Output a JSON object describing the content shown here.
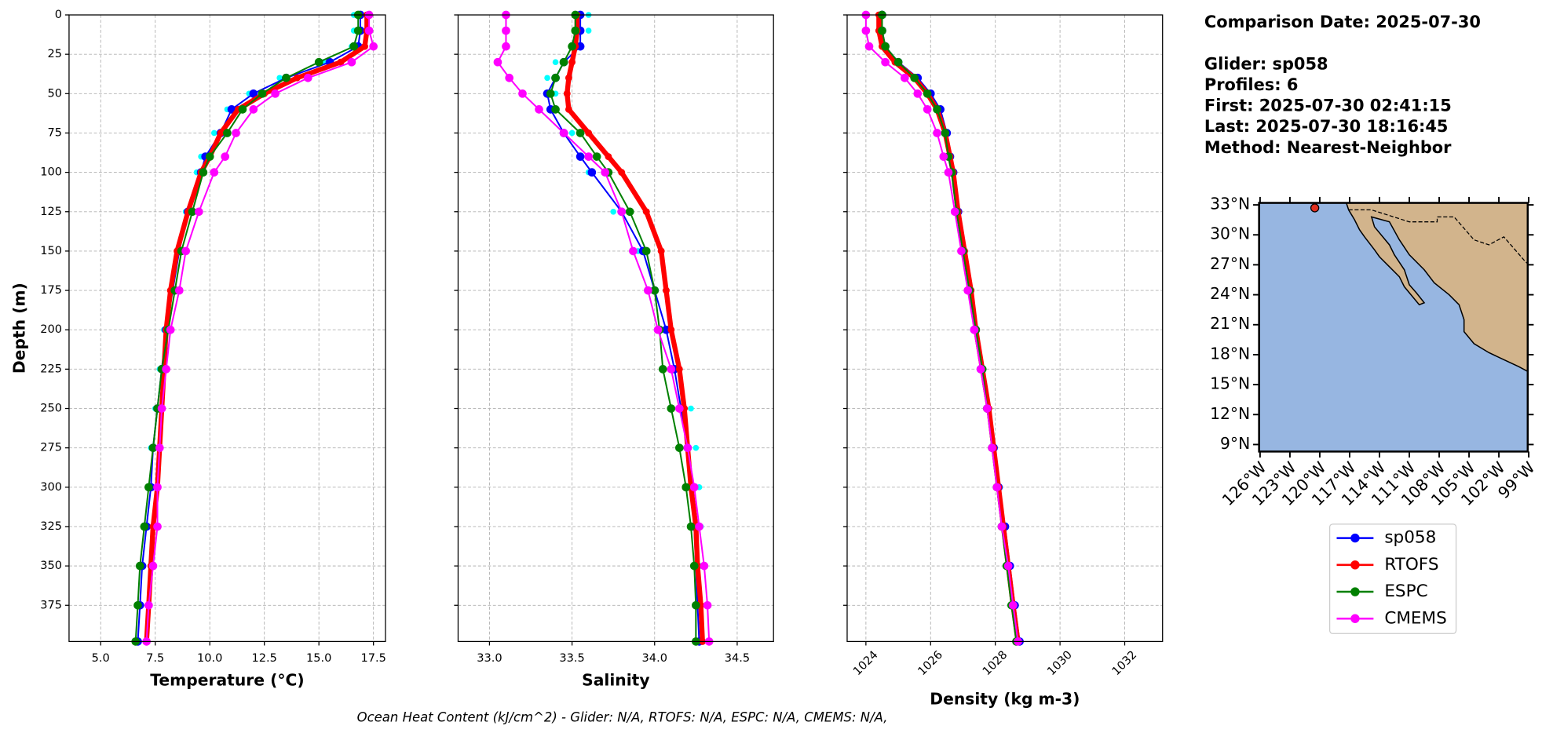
{
  "chart_data": [
    {
      "type": "line",
      "xlabel": "Temperature (°C)",
      "ylabel": "Depth (m)",
      "xlim": [
        3.55,
        18.05
      ],
      "xticks": [
        {
          "value": 5,
          "label": "5.0"
        },
        7.5,
        {
          "value": 10,
          "label": "10.0"
        },
        12.5,
        {
          "value": 15,
          "label": "15.0"
        },
        17.5
      ],
      "ylim": [
        398,
        0
      ],
      "yticks": [
        0,
        25,
        50,
        75,
        100,
        125,
        150,
        175,
        200,
        225,
        250,
        275,
        300,
        325,
        350,
        375
      ],
      "grid": true,
      "y": [
        0,
        10,
        20,
        30,
        40,
        50,
        60,
        75,
        90,
        100,
        125,
        150,
        175,
        200,
        225,
        250,
        275,
        300,
        325,
        350,
        375,
        398
      ],
      "series": [
        {
          "color": "#00ffff",
          "values": [
            16.6,
            16.6,
            16.5,
            15.2,
            13.2,
            11.8,
            10.8,
            10.2,
            9.6,
            9.4,
            8.9,
            8.5,
            8.2,
            7.9,
            7.7,
            7.5,
            7.3,
            7.2,
            7.0,
            6.8,
            6.7,
            6.6
          ]
        },
        {
          "name": "sp058",
          "color": "#0000ff",
          "values": [
            16.9,
            16.9,
            16.8,
            15.5,
            13.5,
            12.0,
            11.0,
            10.5,
            9.8,
            9.6,
            9.0,
            8.6,
            8.3,
            8.0,
            7.8,
            7.6,
            7.4,
            7.3,
            7.1,
            6.9,
            6.8,
            6.7
          ]
        },
        {
          "name": "RTOFS",
          "color": "#ff0000",
          "values": [
            17.2,
            17.2,
            17.1,
            16.0,
            14.0,
            12.5,
            11.3,
            10.5,
            10.0,
            9.6,
            9.0,
            8.5,
            8.2,
            8.0,
            7.9,
            7.8,
            7.7,
            7.6,
            7.4,
            7.3,
            7.2,
            7.1
          ]
        },
        {
          "name": "ESPC",
          "color": "#008000",
          "values": [
            16.8,
            16.8,
            16.6,
            15.0,
            13.5,
            12.4,
            11.5,
            10.8,
            10.0,
            9.7,
            9.2,
            8.7,
            8.4,
            8.1,
            7.8,
            7.6,
            7.4,
            7.2,
            7.0,
            6.8,
            6.7,
            6.6
          ]
        },
        {
          "name": "CMEMS",
          "color": "#ff00ff",
          "values": [
            17.3,
            17.3,
            17.5,
            16.5,
            14.5,
            13.0,
            12.0,
            11.2,
            10.7,
            10.2,
            9.5,
            8.9,
            8.6,
            8.2,
            8.0,
            7.8,
            7.7,
            7.6,
            7.6,
            7.4,
            7.2,
            7.1
          ]
        }
      ]
    },
    {
      "type": "line",
      "xlabel": "Salinity",
      "xlim": [
        32.81,
        34.72
      ],
      "xticks": [
        {
          "value": 33,
          "label": "33.0"
        },
        33.5,
        {
          "value": 34,
          "label": "34.0"
        },
        34.5
      ],
      "ylim": [
        398,
        0
      ],
      "yticks": [
        0,
        25,
        50,
        75,
        100,
        125,
        150,
        175,
        200,
        225,
        250,
        275,
        300,
        325,
        350,
        375
      ],
      "grid": true,
      "y": [
        0,
        10,
        20,
        30,
        40,
        50,
        60,
        75,
        90,
        100,
        125,
        150,
        175,
        200,
        225,
        250,
        275,
        300,
        325,
        350,
        375,
        398
      ],
      "series": [
        {
          "color": "#00ffff",
          "values": [
            33.6,
            33.6,
            33.55,
            33.4,
            33.35,
            33.4,
            33.4,
            33.5,
            33.55,
            33.6,
            33.75,
            33.9,
            33.98,
            34.08,
            34.15,
            34.22,
            34.25,
            34.27,
            34.28,
            34.28,
            34.27,
            34.27
          ]
        },
        {
          "name": "sp058",
          "color": "#0000ff",
          "values": [
            33.55,
            33.55,
            33.55,
            33.45,
            33.4,
            33.35,
            33.37,
            33.45,
            33.55,
            33.62,
            33.8,
            33.93,
            34.0,
            34.07,
            34.12,
            34.16,
            34.2,
            34.22,
            34.24,
            34.25,
            34.26,
            34.27
          ]
        },
        {
          "name": "RTOFS",
          "color": "#ff0000",
          "values": [
            33.53,
            33.53,
            33.52,
            33.5,
            33.48,
            33.47,
            33.48,
            33.6,
            33.72,
            33.8,
            33.95,
            34.04,
            34.07,
            34.1,
            34.15,
            34.18,
            34.2,
            34.22,
            34.25,
            34.26,
            34.28,
            34.29
          ]
        },
        {
          "name": "ESPC",
          "color": "#008000",
          "values": [
            33.52,
            33.52,
            33.5,
            33.45,
            33.4,
            33.37,
            33.4,
            33.55,
            33.65,
            33.72,
            33.85,
            33.95,
            34.0,
            34.03,
            34.05,
            34.1,
            34.15,
            34.19,
            34.22,
            34.24,
            34.25,
            34.25
          ]
        },
        {
          "name": "CMEMS",
          "color": "#ff00ff",
          "values": [
            33.1,
            33.1,
            33.1,
            33.05,
            33.12,
            33.2,
            33.3,
            33.45,
            33.6,
            33.7,
            33.8,
            33.87,
            33.96,
            34.02,
            34.1,
            34.15,
            34.2,
            34.24,
            34.27,
            34.3,
            34.32,
            34.33
          ]
        }
      ]
    },
    {
      "type": "line",
      "xlabel": "Density (kg m-3)",
      "xlim": [
        1023.42,
        1033.17
      ],
      "xticks": [
        1024,
        1026,
        1028,
        1030,
        1032
      ],
      "ylim": [
        398,
        0
      ],
      "yticks": [
        0,
        25,
        50,
        75,
        100,
        125,
        150,
        175,
        200,
        225,
        250,
        275,
        300,
        325,
        350,
        375
      ],
      "grid": true,
      "y": [
        0,
        10,
        20,
        30,
        40,
        50,
        60,
        75,
        90,
        100,
        125,
        150,
        175,
        200,
        225,
        250,
        275,
        300,
        325,
        350,
        375,
        398
      ],
      "series": [
        {
          "color": "#00ffff",
          "values": [
            1024.5,
            1024.5,
            1024.6,
            1025.0,
            1025.6,
            1026.0,
            1026.3,
            1026.5,
            1026.6,
            1026.7,
            1026.85,
            1027.0,
            1027.2,
            1027.35,
            1027.55,
            1027.75,
            1027.95,
            1028.1,
            1028.3,
            1028.45,
            1028.6,
            1028.75
          ]
        },
        {
          "name": "sp058",
          "color": "#0000ff",
          "values": [
            1024.5,
            1024.5,
            1024.6,
            1025.0,
            1025.6,
            1026.0,
            1026.3,
            1026.5,
            1026.6,
            1026.7,
            1026.85,
            1027.0,
            1027.2,
            1027.35,
            1027.55,
            1027.75,
            1027.95,
            1028.1,
            1028.3,
            1028.45,
            1028.6,
            1028.75
          ]
        },
        {
          "name": "RTOFS",
          "color": "#ff0000",
          "values": [
            1024.4,
            1024.4,
            1024.5,
            1024.9,
            1025.5,
            1025.9,
            1026.2,
            1026.45,
            1026.6,
            1026.7,
            1026.85,
            1027.05,
            1027.25,
            1027.4,
            1027.6,
            1027.8,
            1027.95,
            1028.1,
            1028.25,
            1028.4,
            1028.55,
            1028.7
          ]
        },
        {
          "name": "ESPC",
          "color": "#008000",
          "values": [
            1024.5,
            1024.5,
            1024.6,
            1025.0,
            1025.5,
            1025.9,
            1026.2,
            1026.45,
            1026.55,
            1026.65,
            1026.8,
            1027.0,
            1027.2,
            1027.4,
            1027.6,
            1027.75,
            1027.9,
            1028.05,
            1028.2,
            1028.35,
            1028.5,
            1028.65
          ]
        },
        {
          "name": "CMEMS",
          "color": "#ff00ff",
          "values": [
            1024.0,
            1024.0,
            1024.1,
            1024.6,
            1025.2,
            1025.6,
            1025.9,
            1026.2,
            1026.4,
            1026.55,
            1026.75,
            1026.95,
            1027.15,
            1027.35,
            1027.55,
            1027.75,
            1027.9,
            1028.05,
            1028.2,
            1028.4,
            1028.55,
            1028.7
          ]
        }
      ]
    }
  ],
  "info": [
    "Comparison Date: 2025-07-30",
    "Glider: sp058",
    "Profiles: 6",
    "First: 2025-07-30 02:41:15",
    "Last: 2025-07-30 18:16:45",
    "Method: Nearest-Neighbor"
  ],
  "map": {
    "lonticks": [
      "126°W",
      "123°W",
      "120°W",
      "117°W",
      "114°W",
      "111°W",
      "108°W",
      "105°W",
      "102°W",
      "99°W"
    ],
    "latticks": [
      "33°N",
      "30°N",
      "27°N",
      "24°N",
      "21°N",
      "18°N",
      "15°N",
      "12°N",
      "9°N"
    ],
    "marker": {
      "lon": -120.5,
      "lat": 32.7
    }
  },
  "footer": "Ocean Heat Content (kJ/cm^2) - Glider: N/A,  RTOFS: N/A,  ESPC: N/A,  CMEMS: N/A,"
}
